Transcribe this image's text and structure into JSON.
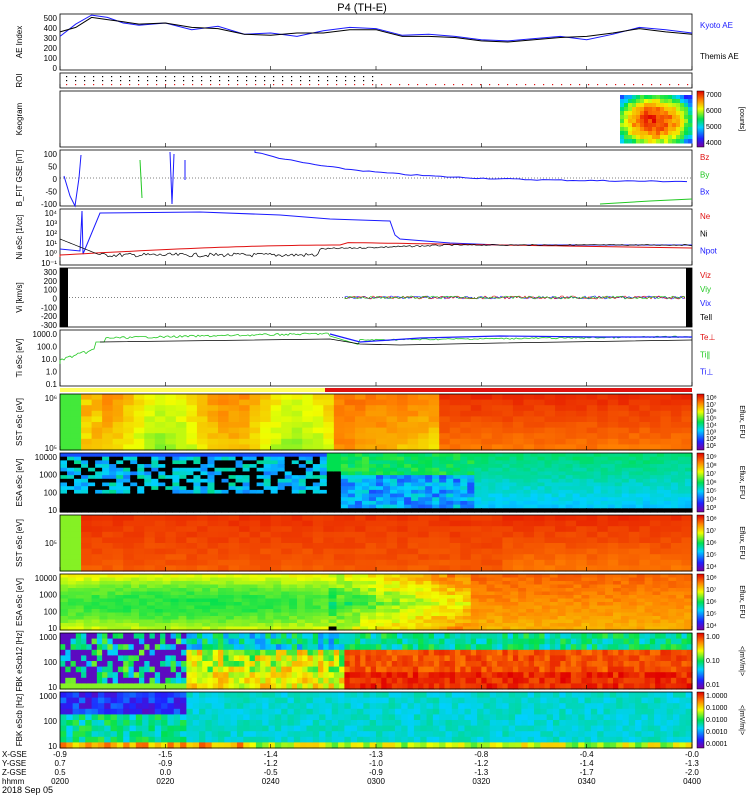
{
  "title": "P4 (TH-E)",
  "colors": {
    "blue": "#1a1aff",
    "green": "#22c822",
    "red": "#e01010",
    "black": "#000000",
    "orange_bar": "#ffa500",
    "yellow_bar": "#ffff40",
    "red_bar": "#e01010"
  },
  "time_axis": {
    "rows": [
      {
        "label": "X-GSE",
        "values": [
          "-0.9",
          "-1.5",
          "-1.4",
          "-1.3",
          "-0.8",
          "-0.4",
          "-0.0"
        ]
      },
      {
        "label": "Y-GSE",
        "values": [
          "0.7",
          "-0.9",
          "-1.2",
          "-1.0",
          "-1.2",
          "-1.4",
          "-1.3"
        ]
      },
      {
        "label": "Z-GSE",
        "values": [
          "0.5",
          "0.0",
          "-0.5",
          "-0.9",
          "-1.3",
          "-1.7",
          "-2.0"
        ]
      },
      {
        "label": "hhmm",
        "values": [
          "0200",
          "0220",
          "0240",
          "0300",
          "0320",
          "0340",
          "0400"
        ]
      }
    ],
    "date": "2018 Sep 05"
  },
  "chart_data": [
    {
      "type": "line",
      "panel": "ae",
      "ylabel": "AE Index",
      "ylim": [
        0,
        500
      ],
      "yticks": [
        "500",
        "400",
        "300",
        "200",
        "100",
        "0"
      ],
      "xlim": [
        0,
        120
      ],
      "series": [
        {
          "name": "Kyoto AE",
          "color": "#1a1aff",
          "x": [
            0,
            3,
            6,
            9,
            12,
            15,
            20,
            25,
            30,
            35,
            40,
            45,
            50,
            55,
            60,
            65,
            70,
            75,
            80,
            85,
            90,
            95,
            100,
            105,
            110,
            115,
            120
          ],
          "y": [
            300,
            410,
            490,
            470,
            420,
            400,
            420,
            360,
            390,
            320,
            330,
            300,
            350,
            380,
            370,
            310,
            320,
            300,
            270,
            260,
            280,
            300,
            270,
            320,
            380,
            360,
            330
          ]
        },
        {
          "name": "Themis AE",
          "color": "#000000",
          "x": [
            0,
            3,
            6,
            9,
            12,
            15,
            20,
            25,
            30,
            35,
            40,
            45,
            50,
            55,
            60,
            65,
            70,
            75,
            80,
            85,
            90,
            95,
            100,
            105,
            110,
            115,
            120
          ],
          "y": [
            340,
            380,
            470,
            450,
            430,
            410,
            420,
            380,
            370,
            320,
            310,
            330,
            330,
            360,
            360,
            300,
            300,
            290,
            260,
            250,
            270,
            290,
            300,
            330,
            370,
            340,
            320
          ]
        }
      ]
    },
    {
      "type": "heatmap",
      "panel": "roi",
      "ylabel": "ROI"
    },
    {
      "type": "heatmap",
      "panel": "keogram",
      "ylabel": "Keogram",
      "colorbar": {
        "ticks": [
          "7000",
          "6000",
          "5000",
          "4000"
        ],
        "label": "[counts]"
      }
    },
    {
      "type": "line",
      "panel": "bfield",
      "ylabel": "B_FIT GSE [nT]",
      "ylim": [
        -100,
        100
      ],
      "yticks": [
        "100",
        "50",
        "0",
        "-50",
        "-100"
      ],
      "series": [
        {
          "name": "Bz",
          "color": "#e01010"
        },
        {
          "name": "By",
          "color": "#22c822"
        },
        {
          "name": "Bx",
          "color": "#1a1aff"
        }
      ]
    },
    {
      "type": "line",
      "panel": "density",
      "ylabel": "Ni eSc [1/cc]",
      "yticks": [
        "10⁴",
        "10³",
        "10²",
        "10¹",
        "10⁰",
        "10⁻¹"
      ],
      "series": [
        {
          "name": "Ne",
          "color": "#e01010"
        },
        {
          "name": "Ni",
          "color": "#000000"
        },
        {
          "name": "Npot",
          "color": "#1a1aff"
        }
      ]
    },
    {
      "type": "line",
      "panel": "velocity",
      "ylabel": "Vi [km/s]",
      "ylim": [
        -300,
        300
      ],
      "yticks": [
        "300",
        "200",
        "100",
        "0",
        "-100",
        "-200",
        "-300"
      ],
      "series": [
        {
          "name": "Viz",
          "color": "#e01010"
        },
        {
          "name": "Viy",
          "color": "#22c822"
        },
        {
          "name": "Vix",
          "color": "#1a1aff"
        },
        {
          "name": "Tell",
          "color": "#000000"
        }
      ]
    },
    {
      "type": "line",
      "panel": "temperature",
      "ylabel": "Ti eSc [eV]",
      "yticks": [
        "1000.0",
        "100.0",
        "10.0",
        "1.0",
        "0.1"
      ],
      "series": [
        {
          "name": "Te⊥",
          "color": "#e01010"
        },
        {
          "name": "Ti∥",
          "color": "#22c822"
        },
        {
          "name": "Ti⊥",
          "color": "#1a1aff"
        }
      ]
    },
    {
      "type": "heatmap",
      "panel": "sst_e",
      "ylabel": "SST eSc [eV]",
      "yticks": [
        "10⁶",
        "10⁵"
      ],
      "colorbar": {
        "ticks": [
          "10⁸",
          "10⁷",
          "10⁶",
          "10⁵",
          "10⁴",
          "10³",
          "10²",
          "10¹"
        ],
        "label": "Eflux, EFU"
      }
    },
    {
      "type": "heatmap",
      "panel": "esa_e",
      "ylabel": "ESA eSc [eV]",
      "yticks": [
        "10000",
        "1000",
        "100",
        "10"
      ],
      "colorbar": {
        "ticks": [
          "10⁹",
          "10⁸",
          "10⁷",
          "10⁶",
          "10⁵",
          "10⁴",
          "10³"
        ],
        "label": "Eflux, EFU"
      }
    },
    {
      "type": "heatmap",
      "panel": "sst_i",
      "ylabel": "SST eSc [eV]",
      "yticks": [
        "10⁵"
      ],
      "colorbar": {
        "ticks": [
          "10⁸",
          "10⁷",
          "10⁶",
          "10⁵",
          "10⁴"
        ],
        "label": "Eflux, EFU"
      }
    },
    {
      "type": "heatmap",
      "panel": "esa_i",
      "ylabel": "ESA eSc [eV]",
      "yticks": [
        "10000",
        "1000",
        "100",
        "10"
      ],
      "colorbar": {
        "ticks": [
          "10⁸",
          "10⁷",
          "10⁶",
          "10⁵",
          "10⁴"
        ],
        "label": "Eflux, EFU"
      }
    },
    {
      "type": "heatmap",
      "panel": "fbk1",
      "ylabel": "FBK eScb12 [Hz]",
      "yticks": [
        "1000",
        "100",
        "10"
      ],
      "colorbar": {
        "ticks": [
          "1.00",
          "0.10",
          "0.01"
        ],
        "label": "<|mV/m|>"
      }
    },
    {
      "type": "heatmap",
      "panel": "fbk2",
      "ylabel": "FBK eScb [Hz]",
      "yticks": [
        "1000",
        "100",
        "10"
      ],
      "colorbar": {
        "ticks": [
          "1.0000",
          "0.1000",
          "0.0100",
          "0.0010",
          "0.0001"
        ],
        "label": "<|mV/m|>"
      }
    }
  ]
}
